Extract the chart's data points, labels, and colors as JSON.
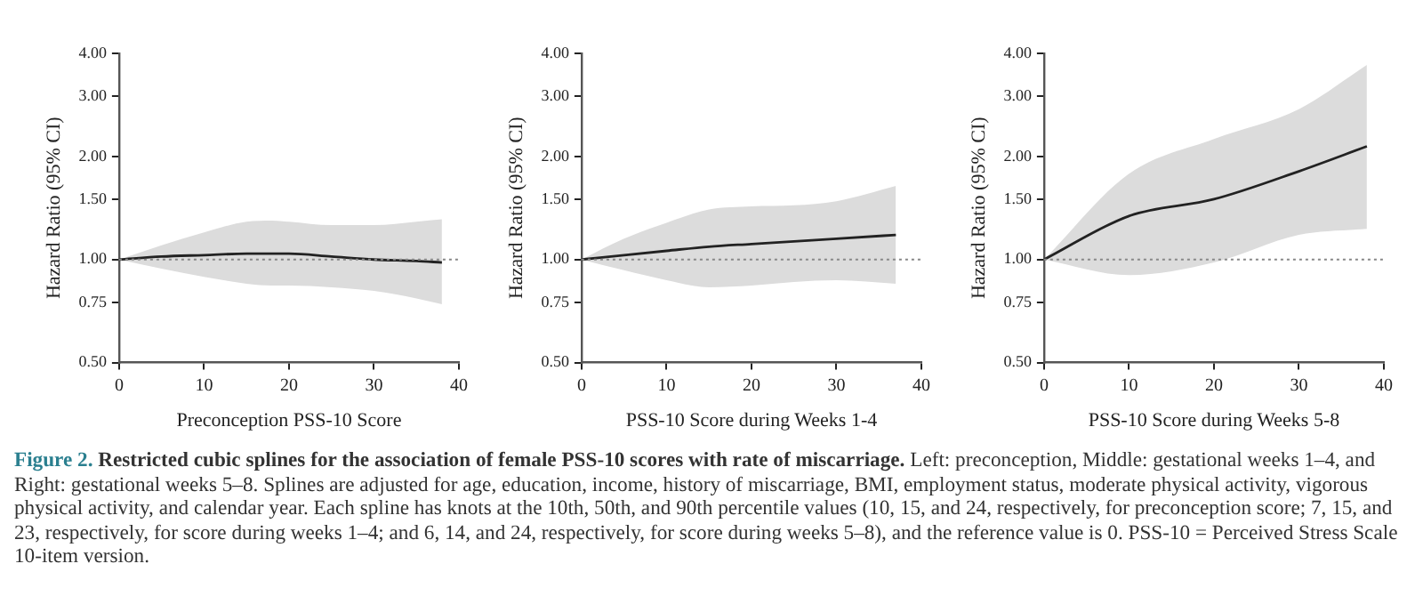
{
  "chart_data": [
    {
      "type": "line",
      "xlabel": "Preconception PSS-10 Score",
      "ylabel": "Hazard Ratio (95% CI)",
      "log": "y",
      "grid": false,
      "legend": false,
      "marker": "none",
      "line_style": "solid",
      "xlim": [
        0,
        40
      ],
      "xticks": [
        0,
        10,
        20,
        30,
        40
      ],
      "ylim": [
        0.5,
        4
      ],
      "yticks": [
        {
          "value": 0.5,
          "label": "0.50"
        },
        {
          "value": 0.75,
          "label": "0.75"
        },
        {
          "value": 1,
          "label": "1.00"
        },
        {
          "value": 1.5,
          "label": "1.50"
        },
        {
          "value": 2,
          "label": "2.00"
        },
        {
          "value": 3,
          "label": "3.00"
        },
        {
          "value": 4,
          "label": "4.00"
        }
      ],
      "ref_lines": [
        {
          "axis": "y",
          "value": 1,
          "color": "#888888",
          "line_style": "dotted"
        }
      ],
      "series": [
        {
          "color": "#222222",
          "x": [
            0,
            5,
            10,
            15,
            18,
            20,
            25,
            30,
            35,
            38
          ],
          "values": [
            1,
            1.02,
            1.03,
            1.04,
            1.04,
            1.04,
            1.02,
            1.0,
            0.99,
            0.98
          ],
          "lower": [
            1,
            0.94,
            0.89,
            0.85,
            0.84,
            0.84,
            0.83,
            0.81,
            0.77,
            0.74
          ],
          "upper": [
            1,
            1.1,
            1.2,
            1.29,
            1.3,
            1.29,
            1.26,
            1.26,
            1.29,
            1.31
          ]
        }
      ],
      "annotations": [
        "Figure 2.",
        "Restricted cubic splines for the association of female PSS-10 scores with rate of miscarriage.",
        "Left: preconception, Middle: gestational weeks 1–4, and Right: gestational weeks 5–8. Splines are adjusted for age, education, income, history of miscarriage, BMI, employment status, moderate physical activity, vigorous physical activity, and calendar year. Each spline has knots at the 10th, 50th, and 90th percentile values (10, 15, and 24, respectively, for preconception score; 7, 15, and 23, respectively, for score during weeks 1–4; and 6, 14, and 24, respectively, for score during weeks 5–8), and the reference value is 0. PSS-10 = Perceived Stress Scale 10-item version."
      ]
    },
    {
      "type": "line",
      "xlabel": "PSS-10 Score during Weeks 1-4",
      "ylabel": "Hazard Ratio (95% CI)",
      "log": "y",
      "grid": false,
      "legend": false,
      "marker": "none",
      "line_style": "solid",
      "xlim": [
        0,
        40
      ],
      "xticks": [
        0,
        10,
        20,
        30,
        40
      ],
      "ylim": [
        0.5,
        4
      ],
      "yticks": [
        {
          "value": 0.5,
          "label": "0.50"
        },
        {
          "value": 0.75,
          "label": "0.75"
        },
        {
          "value": 1,
          "label": "1.00"
        },
        {
          "value": 1.5,
          "label": "1.50"
        },
        {
          "value": 2,
          "label": "2.00"
        },
        {
          "value": 3,
          "label": "3.00"
        },
        {
          "value": 4,
          "label": "4.00"
        }
      ],
      "ref_lines": [
        {
          "axis": "y",
          "value": 1,
          "color": "#888888",
          "line_style": "dotted"
        }
      ],
      "series": [
        {
          "color": "#222222",
          "x": [
            0,
            5,
            10,
            15,
            20,
            25,
            30,
            37
          ],
          "values": [
            1,
            1.03,
            1.06,
            1.09,
            1.11,
            1.13,
            1.15,
            1.18
          ],
          "lower": [
            1,
            0.93,
            0.87,
            0.83,
            0.84,
            0.86,
            0.87,
            0.85
          ],
          "upper": [
            1,
            1.15,
            1.28,
            1.4,
            1.43,
            1.44,
            1.48,
            1.64
          ]
        }
      ]
    },
    {
      "type": "line",
      "xlabel": "PSS-10 Score during Weeks 5-8",
      "ylabel": "Hazard Ratio (95% CI)",
      "log": "y",
      "grid": false,
      "legend": false,
      "marker": "none",
      "line_style": "solid",
      "xlim": [
        0,
        40
      ],
      "xticks": [
        0,
        10,
        20,
        30,
        40
      ],
      "ylim": [
        0.5,
        4
      ],
      "yticks": [
        {
          "value": 0.5,
          "label": "0.50"
        },
        {
          "value": 0.75,
          "label": "0.75"
        },
        {
          "value": 1,
          "label": "1.00"
        },
        {
          "value": 1.5,
          "label": "1.50"
        },
        {
          "value": 2,
          "label": "2.00"
        },
        {
          "value": 3,
          "label": "3.00"
        },
        {
          "value": 4,
          "label": "4.00"
        }
      ],
      "ref_lines": [
        {
          "axis": "y",
          "value": 1,
          "color": "#888888",
          "line_style": "dotted"
        }
      ],
      "series": [
        {
          "color": "#222222",
          "x": [
            0,
            10,
            20,
            30,
            38
          ],
          "values": [
            1,
            1.34,
            1.5,
            1.81,
            2.14
          ],
          "lower": [
            1,
            0.9,
            0.98,
            1.18,
            1.23
          ],
          "upper": [
            1,
            1.78,
            2.25,
            2.75,
            3.7
          ]
        }
      ]
    }
  ]
}
